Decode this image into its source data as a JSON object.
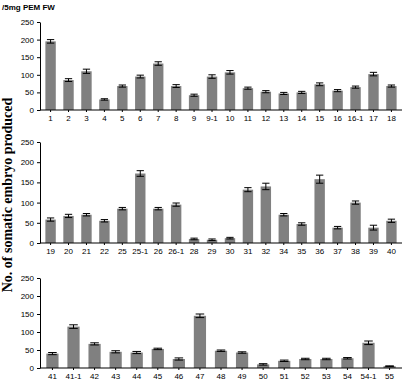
{
  "chart_data": [
    {
      "type": "bar",
      "annotations": [
        "/5mg PEM FW"
      ],
      "y_label": "No. of somatic embryo produced",
      "categories": [
        "1",
        "2",
        "3",
        "4",
        "5",
        "6",
        "7",
        "8",
        "9",
        "9-1",
        "10",
        "11",
        "12",
        "13",
        "14",
        "15",
        "16",
        "16-1",
        "17",
        "18"
      ],
      "values": [
        195,
        85,
        110,
        30,
        68,
        95,
        132,
        68,
        42,
        95,
        107,
        62,
        52,
        47,
        50,
        73,
        55,
        65,
        102,
        68
      ],
      "errors": [
        5,
        4,
        6,
        2,
        3,
        4,
        5,
        4,
        3,
        5,
        5,
        3,
        3,
        3,
        3,
        4,
        3,
        3,
        5,
        3
      ],
      "color": "#808080",
      "ylim": [
        0,
        250
      ],
      "yticks": [
        0,
        50,
        100,
        150,
        200,
        250
      ],
      "grid": false
    },
    {
      "type": "bar",
      "categories": [
        "19",
        "20",
        "21",
        "22",
        "25",
        "25-1",
        "26",
        "26-1",
        "28",
        "29",
        "30",
        "31",
        "32",
        "34",
        "35",
        "36",
        "37",
        "38",
        "39",
        "40"
      ],
      "values": [
        58,
        67,
        70,
        55,
        85,
        172,
        85,
        95,
        10,
        8,
        12,
        132,
        140,
        70,
        47,
        158,
        38,
        100,
        38,
        55
      ],
      "errors": [
        4,
        4,
        3,
        3,
        3,
        7,
        3,
        4,
        2,
        2,
        2,
        5,
        8,
        3,
        3,
        10,
        3,
        4,
        6,
        4
      ],
      "color": "#808080",
      "ylim": [
        0,
        250
      ],
      "yticks": [
        0,
        50,
        100,
        150,
        200,
        250
      ],
      "grid": false
    },
    {
      "type": "bar",
      "categories": [
        "41",
        "41-1",
        "42",
        "43",
        "44",
        "45",
        "46",
        "47",
        "48",
        "49",
        "50",
        "51",
        "52",
        "53",
        "54",
        "54-1",
        "55"
      ],
      "values": [
        40,
        115,
        67,
        45,
        43,
        53,
        25,
        145,
        48,
        43,
        10,
        20,
        25,
        25,
        27,
        70,
        5
      ],
      "errors": [
        3,
        5,
        3,
        3,
        3,
        2,
        3,
        5,
        2,
        2,
        2,
        2,
        2,
        2,
        2,
        5,
        1
      ],
      "color": "#808080",
      "ylim": [
        0,
        250
      ],
      "yticks": [
        0,
        50,
        100,
        150,
        200,
        250
      ],
      "grid": false
    }
  ]
}
